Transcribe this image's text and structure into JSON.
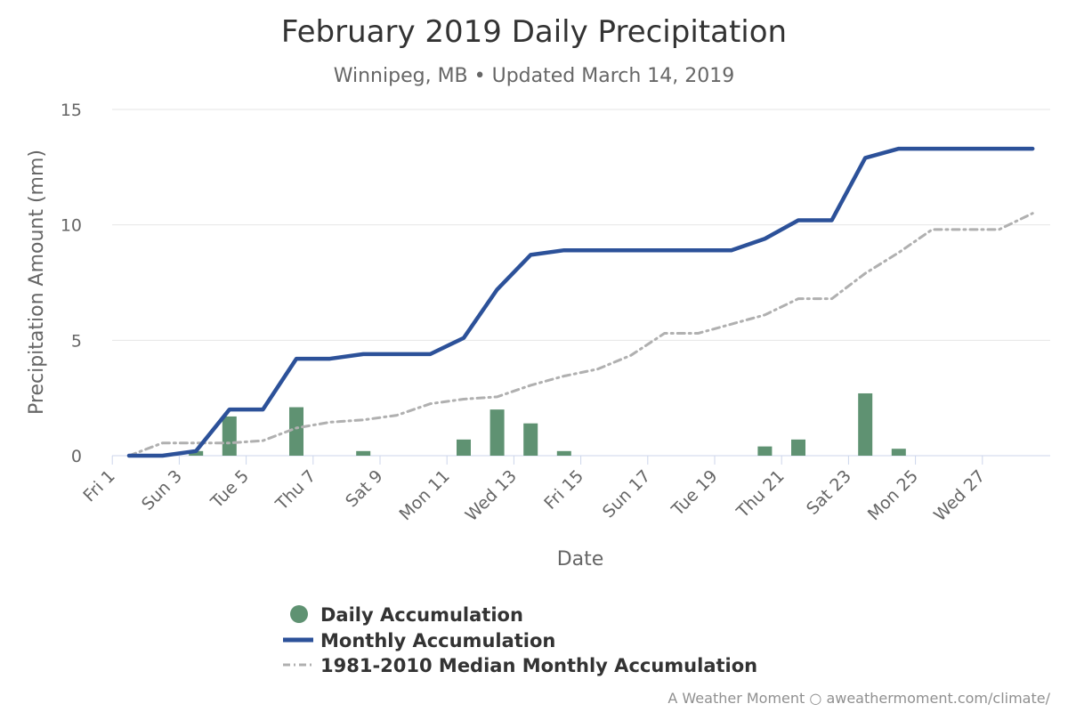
{
  "chart_data": {
    "type": "bar+line",
    "title": "February 2019 Daily Precipitation",
    "subtitle": "Winnipeg, MB • Updated March 14, 2019",
    "xlabel": "Date",
    "ylabel": "Precipitation Amount (mm)",
    "ylim": [
      0,
      15
    ],
    "yticks": [
      "0",
      "5",
      "10",
      "15"
    ],
    "grid": "horizontal",
    "legend_position": "bottom",
    "days": [
      1,
      2,
      3,
      4,
      5,
      6,
      7,
      8,
      9,
      10,
      11,
      12,
      13,
      14,
      15,
      16,
      17,
      18,
      19,
      20,
      21,
      22,
      23,
      24,
      25,
      26,
      27,
      28
    ],
    "xtick_labels": [
      "Fri 1",
      "Sun 3",
      "Tue 5",
      "Thu 7",
      "Sat 9",
      "Mon 11",
      "Wed 13",
      "Fri 15",
      "Sun 17",
      "Tue 19",
      "Thu 21",
      "Sat 23",
      "Mon 25",
      "Wed 27"
    ],
    "series": [
      {
        "name": "Daily Accumulation",
        "kind": "bar",
        "color": "#5f9272",
        "values": [
          0,
          0,
          0.2,
          1.7,
          0,
          2.1,
          0,
          0.2,
          0,
          0,
          0.7,
          2.0,
          1.4,
          0.2,
          0,
          0,
          0,
          0,
          0,
          0.4,
          0.7,
          0,
          2.7,
          0.3,
          0,
          0,
          0,
          0
        ]
      },
      {
        "name": "Monthly Accumulation",
        "kind": "line",
        "color": "#2c5199",
        "values": [
          0,
          0,
          0.2,
          2.0,
          2.0,
          4.2,
          4.2,
          4.4,
          4.4,
          4.4,
          5.1,
          7.2,
          8.7,
          8.9,
          8.9,
          8.9,
          8.9,
          8.9,
          8.9,
          9.4,
          10.2,
          10.2,
          12.9,
          13.3,
          13.3,
          13.3,
          13.3,
          13.3
        ]
      },
      {
        "name": "1981-2010 Median Monthly Accumulation",
        "kind": "line-dashdot",
        "color": "#b0b0b0",
        "values": [
          0,
          0.55,
          0.55,
          0.55,
          0.65,
          1.2,
          1.45,
          1.55,
          1.75,
          2.25,
          2.45,
          2.55,
          3.05,
          3.45,
          3.75,
          4.35,
          5.3,
          5.3,
          5.7,
          6.1,
          6.8,
          6.8,
          7.9,
          8.8,
          9.8,
          9.8,
          9.8,
          10.5
        ]
      }
    ]
  },
  "credit": "A Weather Moment ○ aweathermoment.com/climate/"
}
